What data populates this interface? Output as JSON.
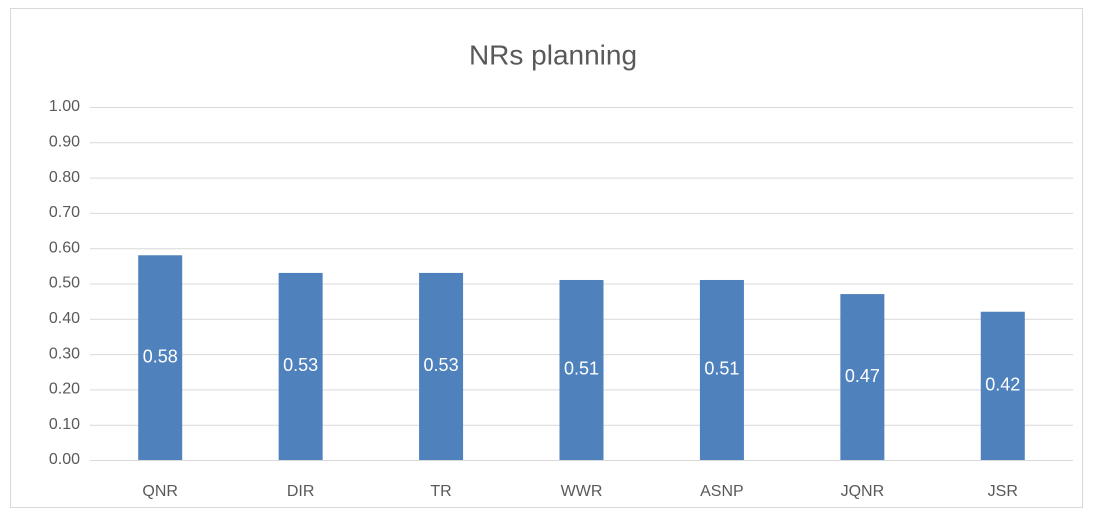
{
  "chart_data": {
    "type": "bar",
    "title": "NRs planning",
    "categories": [
      "QNR",
      "DIR",
      "TR",
      "WWR",
      "ASNP",
      "JQNR",
      "JSR"
    ],
    "values": [
      0.58,
      0.53,
      0.53,
      0.51,
      0.51,
      0.47,
      0.42
    ],
    "color": "#4f81bd",
    "ylim": [
      0,
      1
    ],
    "yticks": [
      {
        "value": 0,
        "label": "0.00"
      },
      {
        "value": 0.1,
        "label": "0.10"
      },
      {
        "value": 0.2,
        "label": "0.20"
      },
      {
        "value": 0.3,
        "label": "0.30"
      },
      {
        "value": 0.4,
        "label": "0.40"
      },
      {
        "value": 0.5,
        "label": "0.50"
      },
      {
        "value": 0.6,
        "label": "0.60"
      },
      {
        "value": 0.7,
        "label": "0.70"
      },
      {
        "value": 0.8,
        "label": "0.80"
      },
      {
        "value": 0.9,
        "label": "0.90"
      },
      {
        "value": 1,
        "label": "1.00"
      }
    ],
    "grid": true
  }
}
